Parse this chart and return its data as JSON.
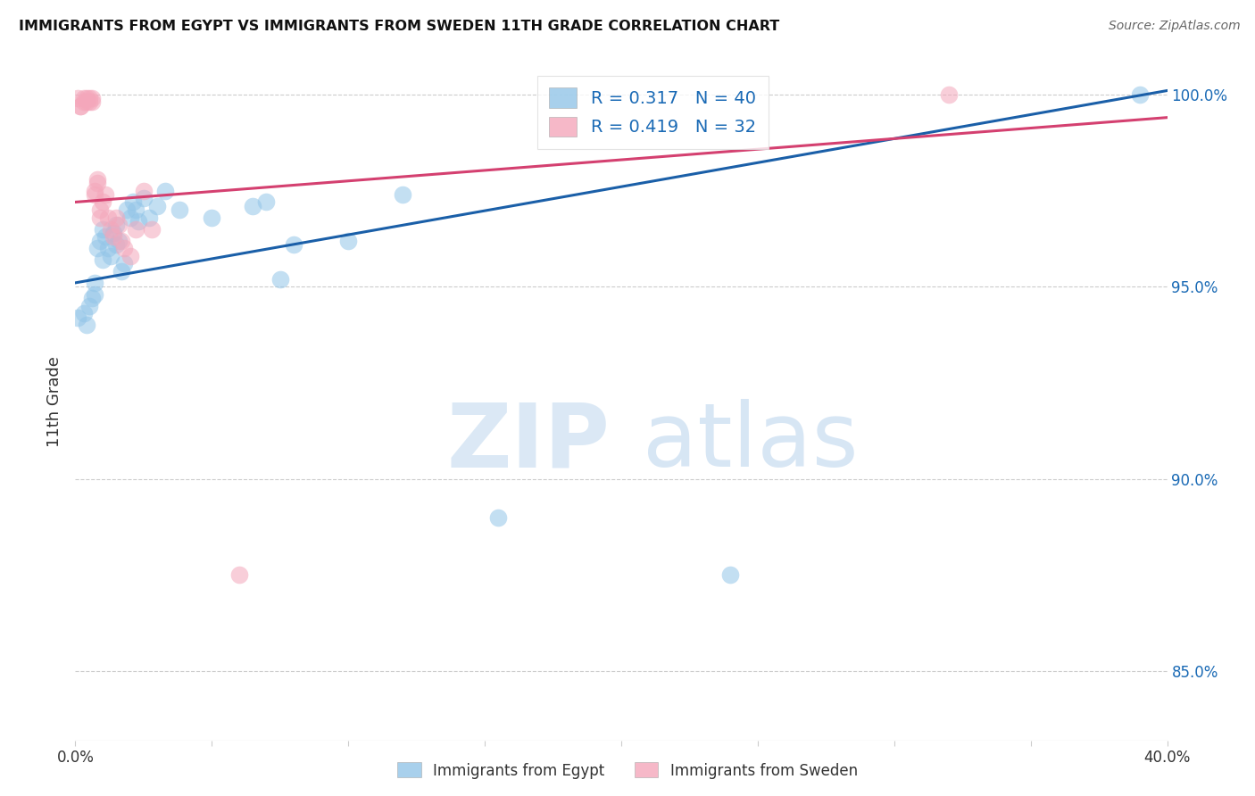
{
  "title": "IMMIGRANTS FROM EGYPT VS IMMIGRANTS FROM SWEDEN 11TH GRADE CORRELATION CHART",
  "source": "Source: ZipAtlas.com",
  "xlabel_blue": "Immigrants from Egypt",
  "xlabel_pink": "Immigrants from Sweden",
  "ylabel": "11th Grade",
  "xlim": [
    0.0,
    0.4
  ],
  "ylim": [
    0.832,
    1.008
  ],
  "xticks": [
    0.0,
    0.05,
    0.1,
    0.15,
    0.2,
    0.25,
    0.3,
    0.35,
    0.4
  ],
  "xticklabels": [
    "0.0%",
    "",
    "",
    "",
    "",
    "",
    "",
    "",
    "40.0%"
  ],
  "yticks": [
    0.85,
    0.9,
    0.95,
    1.0
  ],
  "yticklabels": [
    "85.0%",
    "90.0%",
    "95.0%",
    "100.0%"
  ],
  "blue_color": "#92c5e8",
  "pink_color": "#f4a7bb",
  "blue_line_color": "#1a5fa8",
  "pink_line_color": "#d44070",
  "legend_R_blue": "0.317",
  "legend_N_blue": "40",
  "legend_R_pink": "0.419",
  "legend_N_pink": "32",
  "watermark_zip": "ZIP",
  "watermark_atlas": "atlas",
  "blue_x": [
    0.001,
    0.003,
    0.004,
    0.005,
    0.006,
    0.007,
    0.007,
    0.008,
    0.009,
    0.01,
    0.01,
    0.011,
    0.012,
    0.013,
    0.014,
    0.015,
    0.015,
    0.016,
    0.017,
    0.018,
    0.019,
    0.02,
    0.021,
    0.022,
    0.023,
    0.025,
    0.027,
    0.03,
    0.033,
    0.038,
    0.05,
    0.065,
    0.07,
    0.075,
    0.08,
    0.1,
    0.12,
    0.155,
    0.24,
    0.39
  ],
  "blue_y": [
    0.942,
    0.943,
    0.94,
    0.945,
    0.947,
    0.948,
    0.951,
    0.96,
    0.962,
    0.965,
    0.957,
    0.963,
    0.96,
    0.958,
    0.964,
    0.961,
    0.966,
    0.962,
    0.954,
    0.956,
    0.97,
    0.968,
    0.972,
    0.97,
    0.967,
    0.973,
    0.968,
    0.971,
    0.975,
    0.97,
    0.968,
    0.971,
    0.972,
    0.952,
    0.961,
    0.962,
    0.974,
    0.89,
    0.875,
    1.0
  ],
  "pink_x": [
    0.001,
    0.002,
    0.002,
    0.003,
    0.003,
    0.004,
    0.004,
    0.005,
    0.005,
    0.006,
    0.006,
    0.007,
    0.007,
    0.008,
    0.008,
    0.009,
    0.009,
    0.01,
    0.011,
    0.012,
    0.013,
    0.014,
    0.015,
    0.016,
    0.017,
    0.018,
    0.02,
    0.022,
    0.025,
    0.028,
    0.06,
    0.32
  ],
  "pink_y": [
    0.999,
    0.997,
    0.997,
    0.998,
    0.999,
    0.998,
    0.999,
    0.998,
    0.999,
    0.998,
    0.999,
    0.974,
    0.975,
    0.977,
    0.978,
    0.97,
    0.968,
    0.972,
    0.974,
    0.968,
    0.965,
    0.963,
    0.968,
    0.966,
    0.962,
    0.96,
    0.958,
    0.965,
    0.975,
    0.965,
    0.875,
    1.0
  ],
  "blue_line_x0": 0.0,
  "blue_line_y0": 0.951,
  "blue_line_x1": 0.4,
  "blue_line_y1": 1.001,
  "pink_line_x0": 0.0,
  "pink_line_y0": 0.972,
  "pink_line_x1": 0.4,
  "pink_line_y1": 0.994,
  "blue_marker_size": 200,
  "pink_marker_size": 200,
  "grid_color": "#cccccc",
  "background_color": "#ffffff"
}
